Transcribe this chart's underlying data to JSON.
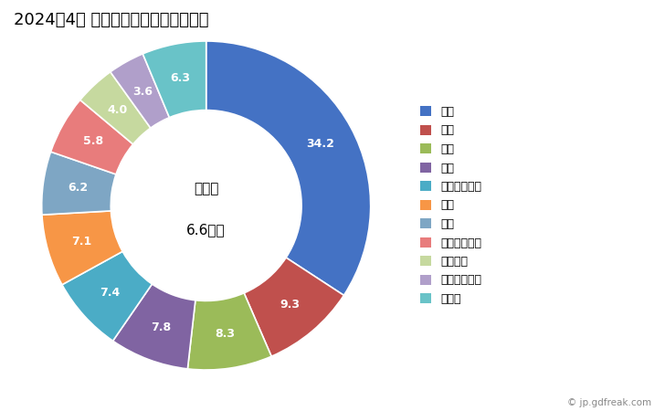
{
  "title": "2024年4月 輸出相手国のシェア（％）",
  "center_label_line1": "総　額",
  "center_label_line2": "6.6億円",
  "categories": [
    "米国",
    "中国",
    "台湾",
    "タイ",
    "カザフスタン",
    "韓国",
    "香港",
    "インドネシア",
    "ベトナム",
    "シンガポール",
    "その他"
  ],
  "values": [
    34.2,
    9.3,
    8.3,
    7.8,
    7.4,
    7.1,
    6.2,
    5.8,
    4.0,
    3.6,
    6.3
  ],
  "colors": [
    "#4472C4",
    "#C0504D",
    "#9BBB59",
    "#8064A2",
    "#4BACC6",
    "#F79646",
    "#7EA6C4",
    "#E87C7C",
    "#C6D99F",
    "#B09FCA",
    "#69C3C8"
  ],
  "wedge_labels": [
    "34.2",
    "9.3",
    "8.3",
    "7.8",
    "7.4",
    "7.1",
    "6.2",
    "5.8",
    "4.0",
    "3.6",
    "6.3"
  ],
  "background_color": "#ffffff",
  "title_fontsize": 13,
  "label_fontsize": 9,
  "legend_fontsize": 9,
  "watermark": "© jp.gdfreak.com"
}
